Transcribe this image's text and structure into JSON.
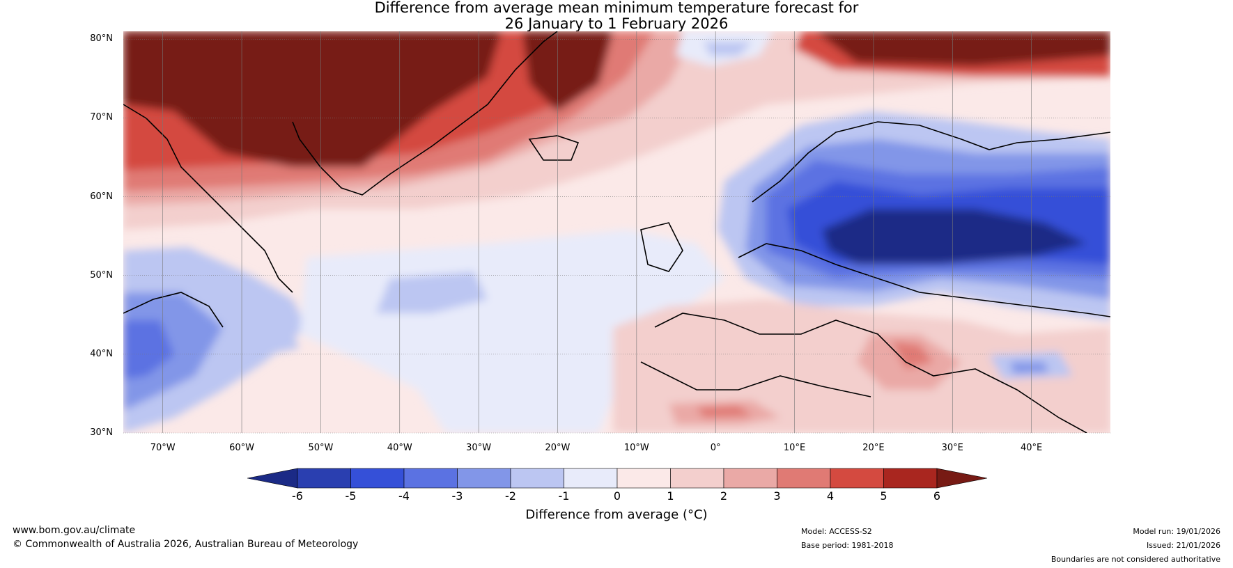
{
  "title": {
    "line1": "Difference from average mean minimum temperature forecast for",
    "line2": "26 January to 1 February 2026"
  },
  "map": {
    "region": "North Atlantic and Europe",
    "lat_labels": [
      "80°N",
      "70°N",
      "60°N",
      "50°N",
      "40°N",
      "30°N"
    ],
    "lon_labels": [
      "70°W",
      "60°W",
      "50°W",
      "40°W",
      "30°W",
      "20°W",
      "10°W",
      "0°",
      "10°E",
      "20°E",
      "30°E",
      "40°E"
    ],
    "lat_values": [
      80,
      70,
      60,
      50,
      40,
      30
    ],
    "lon_values": [
      -70,
      -60,
      -50,
      -40,
      -30,
      -20,
      -10,
      0,
      10,
      20,
      30,
      40
    ],
    "lon_range": [
      -75,
      50
    ],
    "lat_range": [
      30,
      81
    ]
  },
  "colorbar": {
    "ticks": [
      "-6",
      "-5",
      "-4",
      "-3",
      "-2",
      "-1",
      "0",
      "1",
      "2",
      "3",
      "4",
      "5",
      "6"
    ],
    "colors": [
      "#1b2a86",
      "#2a3fb0",
      "#3550d8",
      "#5b72e2",
      "#8296e8",
      "#bcc6f2",
      "#e8ebfa",
      "#fbe9e8",
      "#f3cfcd",
      "#eaa9a6",
      "#e07a74",
      "#d44a40",
      "#a9261f",
      "#771a14"
    ],
    "label": "Difference from average (°C)"
  },
  "footer": {
    "website": "www.bom.gov.au/climate",
    "copyright": "© Commonwealth of Australia 2026, Australian Bureau of Meteorology",
    "model": "Model: ACCESS-S2",
    "base_period": "Base period: 1981-2018",
    "model_run": "Model run: 19/01/2026",
    "issued": "Issued: 21/01/2026",
    "disclaimer": "Boundaries are not considered authoritative"
  }
}
